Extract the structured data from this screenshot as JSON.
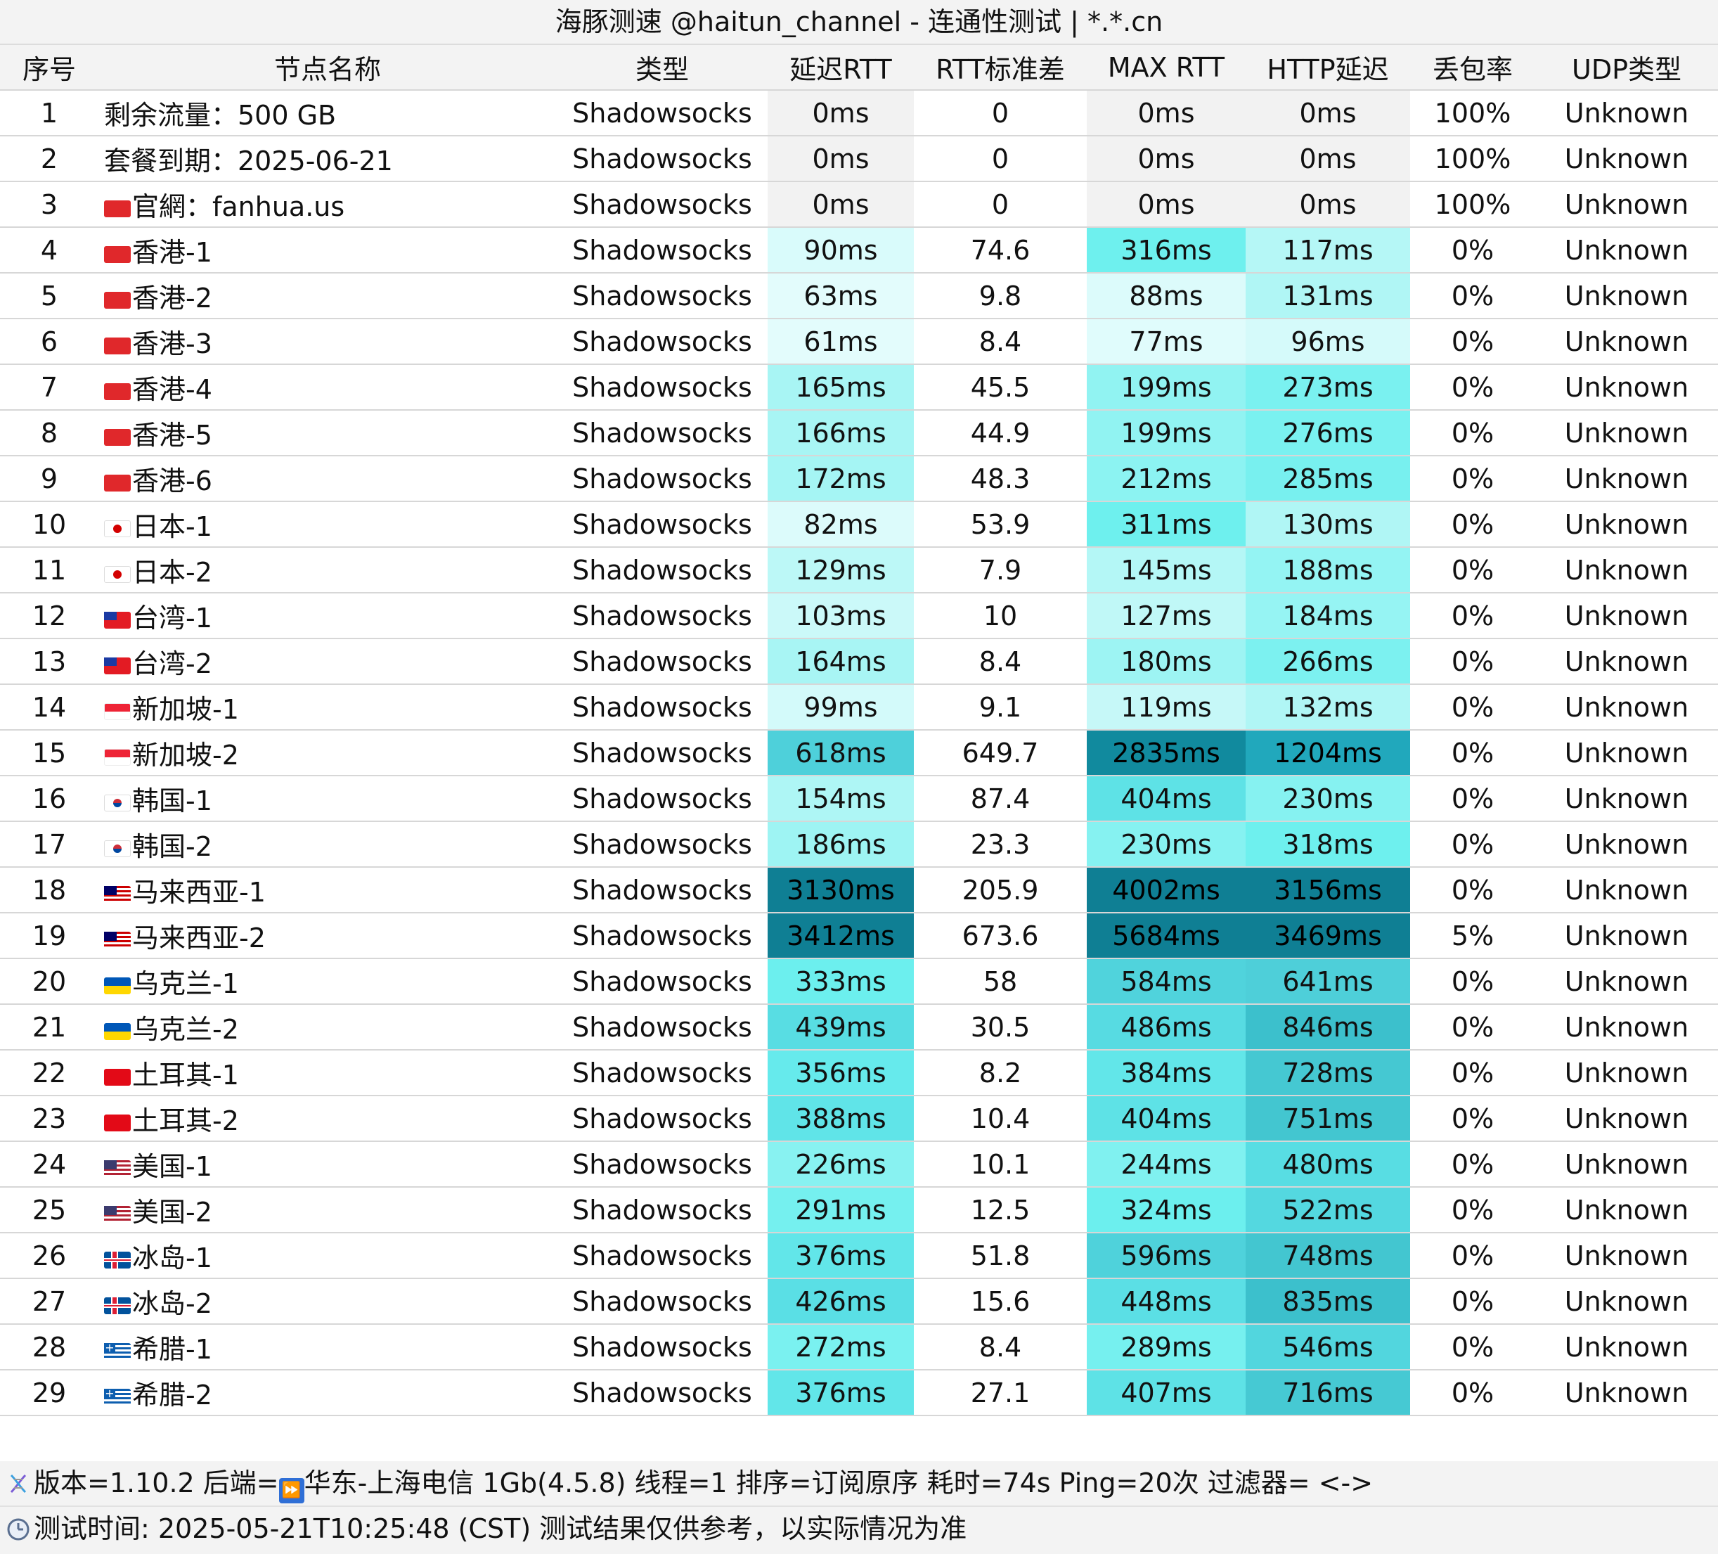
{
  "title": "海豚测速 @haitun_channel - 连通性测试 | *.*.cn",
  "columns": [
    "序号",
    "节点名称",
    "类型",
    "延迟RTT",
    "RTT标准差",
    "MAX RTT",
    "HTTP延迟",
    "丢包率",
    "UDP类型"
  ],
  "rows": [
    {
      "idx": "1",
      "flag": "",
      "name": "剩余流量：500 GB",
      "type": "Shadowsocks",
      "rtt": "0ms",
      "std": "0",
      "max": "0ms",
      "http": "0ms",
      "loss": "100%",
      "udp": "Unknown",
      "rtt_color": "#f2f2f2",
      "max_color": "#f2f2f2",
      "http_color": "#f2f2f2"
    },
    {
      "idx": "2",
      "flag": "",
      "name": "套餐到期：2025-06-21",
      "type": "Shadowsocks",
      "rtt": "0ms",
      "std": "0",
      "max": "0ms",
      "http": "0ms",
      "loss": "100%",
      "udp": "Unknown",
      "rtt_color": "#f2f2f2",
      "max_color": "#f2f2f2",
      "http_color": "#f2f2f2"
    },
    {
      "idx": "3",
      "flag": "hk",
      "name": "官網：fanhua.us",
      "type": "Shadowsocks",
      "rtt": "0ms",
      "std": "0",
      "max": "0ms",
      "http": "0ms",
      "loss": "100%",
      "udp": "Unknown",
      "rtt_color": "#f2f2f2",
      "max_color": "#f2f2f2",
      "http_color": "#f2f2f2"
    },
    {
      "idx": "4",
      "flag": "hk",
      "name": "香港-1",
      "type": "Shadowsocks",
      "rtt": "90ms",
      "std": "74.6",
      "max": "316ms",
      "http": "117ms",
      "loss": "0%",
      "udp": "Unknown",
      "rtt_color": "#d9fbfb",
      "max_color": "#6ef0ee",
      "http_color": "#b5f7f6"
    },
    {
      "idx": "5",
      "flag": "hk",
      "name": "香港-2",
      "type": "Shadowsocks",
      "rtt": "63ms",
      "std": "9.8",
      "max": "88ms",
      "http": "131ms",
      "loss": "0%",
      "udp": "Unknown",
      "rtt_color": "#e3fcfc",
      "max_color": "#dcfbfb",
      "http_color": "#b0f6f5"
    },
    {
      "idx": "6",
      "flag": "hk",
      "name": "香港-3",
      "type": "Shadowsocks",
      "rtt": "61ms",
      "std": "8.4",
      "max": "77ms",
      "http": "96ms",
      "loss": "0%",
      "udp": "Unknown",
      "rtt_color": "#e3fcfc",
      "max_color": "#e0fcfc",
      "http_color": "#d5fafa"
    },
    {
      "idx": "7",
      "flag": "hk",
      "name": "香港-4",
      "type": "Shadowsocks",
      "rtt": "165ms",
      "std": "45.5",
      "max": "199ms",
      "http": "273ms",
      "loss": "0%",
      "udp": "Unknown",
      "rtt_color": "#a8f5f4",
      "max_color": "#91f3f2",
      "http_color": "#7af1f0"
    },
    {
      "idx": "8",
      "flag": "hk",
      "name": "香港-5",
      "type": "Shadowsocks",
      "rtt": "166ms",
      "std": "44.9",
      "max": "199ms",
      "http": "276ms",
      "loss": "0%",
      "udp": "Unknown",
      "rtt_color": "#a8f5f4",
      "max_color": "#91f3f2",
      "http_color": "#7af1f0"
    },
    {
      "idx": "9",
      "flag": "hk",
      "name": "香港-6",
      "type": "Shadowsocks",
      "rtt": "172ms",
      "std": "48.3",
      "max": "212ms",
      "http": "285ms",
      "loss": "0%",
      "udp": "Unknown",
      "rtt_color": "#a5f5f4",
      "max_color": "#8cf3f2",
      "http_color": "#78f0ef"
    },
    {
      "idx": "10",
      "flag": "jp",
      "name": "日本-1",
      "type": "Shadowsocks",
      "rtt": "82ms",
      "std": "53.9",
      "max": "311ms",
      "http": "130ms",
      "loss": "0%",
      "udp": "Unknown",
      "rtt_color": "#dcfbfb",
      "max_color": "#6ef0ee",
      "http_color": "#b0f6f5"
    },
    {
      "idx": "11",
      "flag": "jp",
      "name": "日本-2",
      "type": "Shadowsocks",
      "rtt": "129ms",
      "std": "7.9",
      "max": "145ms",
      "http": "188ms",
      "loss": "0%",
      "udp": "Unknown",
      "rtt_color": "#bcf8f7",
      "max_color": "#b4f7f6",
      "http_color": "#94f4f3"
    },
    {
      "idx": "12",
      "flag": "tw",
      "name": "台湾-1",
      "type": "Shadowsocks",
      "rtt": "103ms",
      "std": "10",
      "max": "127ms",
      "http": "184ms",
      "loss": "0%",
      "udp": "Unknown",
      "rtt_color": "#cbf9f9",
      "max_color": "#c0f8f7",
      "http_color": "#96f4f3"
    },
    {
      "idx": "13",
      "flag": "tw",
      "name": "台湾-2",
      "type": "Shadowsocks",
      "rtt": "164ms",
      "std": "8.4",
      "max": "180ms",
      "http": "266ms",
      "loss": "0%",
      "udp": "Unknown",
      "rtt_color": "#a8f5f4",
      "max_color": "#9df4f3",
      "http_color": "#7cf1f0"
    },
    {
      "idx": "14",
      "flag": "sg",
      "name": "新加坡-1",
      "type": "Shadowsocks",
      "rtt": "99ms",
      "std": "9.1",
      "max": "119ms",
      "http": "132ms",
      "loss": "0%",
      "udp": "Unknown",
      "rtt_color": "#d3fafa",
      "max_color": "#c6f8f8",
      "http_color": "#b0f6f5"
    },
    {
      "idx": "15",
      "flag": "sg",
      "name": "新加坡-2",
      "type": "Shadowsocks",
      "rtt": "618ms",
      "std": "649.7",
      "max": "2835ms",
      "http": "1204ms",
      "loss": "0%",
      "udp": "Unknown",
      "rtt_color": "#4ed0da",
      "max_color": "#118a9e",
      "http_color": "#21a8bc"
    },
    {
      "idx": "16",
      "flag": "kr",
      "name": "韩国-1",
      "type": "Shadowsocks",
      "rtt": "154ms",
      "std": "87.4",
      "max": "404ms",
      "http": "230ms",
      "loss": "0%",
      "udp": "Unknown",
      "rtt_color": "#aef6f5",
      "max_color": "#5ee2e6",
      "http_color": "#86f2f1"
    },
    {
      "idx": "17",
      "flag": "kr",
      "name": "韩国-2",
      "type": "Shadowsocks",
      "rtt": "186ms",
      "std": "23.3",
      "max": "230ms",
      "http": "318ms",
      "loss": "0%",
      "udp": "Unknown",
      "rtt_color": "#9ef4f3",
      "max_color": "#86f2f1",
      "http_color": "#6ef0ee"
    },
    {
      "idx": "18",
      "flag": "my",
      "name": "马来西亚-1",
      "type": "Shadowsocks",
      "rtt": "3130ms",
      "std": "205.9",
      "max": "4002ms",
      "http": "3156ms",
      "loss": "0%",
      "udp": "Unknown",
      "rtt_color": "#0f7f94",
      "max_color": "#0f7f94",
      "http_color": "#0f7f94"
    },
    {
      "idx": "19",
      "flag": "my",
      "name": "马来西亚-2",
      "type": "Shadowsocks",
      "rtt": "3412ms",
      "std": "673.6",
      "max": "5684ms",
      "http": "3469ms",
      "loss": "5%",
      "udp": "Unknown",
      "rtt_color": "#0f7f94",
      "max_color": "#0f7f94",
      "http_color": "#0f7f94"
    },
    {
      "idx": "20",
      "flag": "ua",
      "name": "乌克兰-1",
      "type": "Shadowsocks",
      "rtt": "333ms",
      "std": "58",
      "max": "584ms",
      "http": "641ms",
      "loss": "0%",
      "udp": "Unknown",
      "rtt_color": "#6cefee",
      "max_color": "#50d3dc",
      "http_color": "#4ecfd9"
    },
    {
      "idx": "21",
      "flag": "ua",
      "name": "乌克兰-2",
      "type": "Shadowsocks",
      "rtt": "439ms",
      "std": "30.5",
      "max": "486ms",
      "http": "846ms",
      "loss": "0%",
      "udp": "Unknown",
      "rtt_color": "#58dde3",
      "max_color": "#57dbe2",
      "http_color": "#3cc0cc"
    },
    {
      "idx": "22",
      "flag": "tr",
      "name": "土耳其-1",
      "type": "Shadowsocks",
      "rtt": "356ms",
      "std": "8.2",
      "max": "384ms",
      "http": "728ms",
      "loss": "0%",
      "udp": "Unknown",
      "rtt_color": "#66eaec",
      "max_color": "#62e6e9",
      "http_color": "#45c8d2"
    },
    {
      "idx": "23",
      "flag": "tr",
      "name": "土耳其-2",
      "type": "Shadowsocks",
      "rtt": "388ms",
      "std": "10.4",
      "max": "404ms",
      "http": "751ms",
      "loss": "0%",
      "udp": "Unknown",
      "rtt_color": "#60e4e8",
      "max_color": "#5ee2e6",
      "http_color": "#43c6d0"
    },
    {
      "idx": "24",
      "flag": "us",
      "name": "美国-1",
      "type": "Shadowsocks",
      "rtt": "226ms",
      "std": "10.1",
      "max": "244ms",
      "http": "480ms",
      "loss": "0%",
      "udp": "Unknown",
      "rtt_color": "#88f2f1",
      "max_color": "#80f1f0",
      "http_color": "#58dde3"
    },
    {
      "idx": "25",
      "flag": "us",
      "name": "美国-2",
      "type": "Shadowsocks",
      "rtt": "291ms",
      "std": "12.5",
      "max": "324ms",
      "http": "522ms",
      "loss": "0%",
      "udp": "Unknown",
      "rtt_color": "#75f0ef",
      "max_color": "#6cefee",
      "http_color": "#54d8e0"
    },
    {
      "idx": "26",
      "flag": "is",
      "name": "冰岛-1",
      "type": "Shadowsocks",
      "rtt": "376ms",
      "std": "51.8",
      "max": "596ms",
      "http": "748ms",
      "loss": "0%",
      "udp": "Unknown",
      "rtt_color": "#62e6e9",
      "max_color": "#4fd2db",
      "http_color": "#43c6d0"
    },
    {
      "idx": "27",
      "flag": "is",
      "name": "冰岛-2",
      "type": "Shadowsocks",
      "rtt": "426ms",
      "std": "15.6",
      "max": "448ms",
      "http": "835ms",
      "loss": "0%",
      "udp": "Unknown",
      "rtt_color": "#5adfe5",
      "max_color": "#5bdfe5",
      "http_color": "#3cc0cc"
    },
    {
      "idx": "28",
      "flag": "gr",
      "name": "希腊-1",
      "type": "Shadowsocks",
      "rtt": "272ms",
      "std": "8.4",
      "max": "289ms",
      "http": "546ms",
      "loss": "0%",
      "udp": "Unknown",
      "rtt_color": "#7af1f0",
      "max_color": "#76f0ef",
      "http_color": "#52d6de"
    },
    {
      "idx": "29",
      "flag": "gr",
      "name": "希腊-2",
      "type": "Shadowsocks",
      "rtt": "376ms",
      "std": "27.1",
      "max": "407ms",
      "http": "716ms",
      "loss": "0%",
      "udp": "Unknown",
      "rtt_color": "#62e6e9",
      "max_color": "#5ee2e6",
      "http_color": "#46c9d3"
    }
  ],
  "footer": {
    "line1": "版本=1.10.2  后端=",
    "line1_backend": "华东-上海电信 1Gb(4.5.8)   线程=1  排序=订阅原序  耗时=74s  Ping=20次  过滤器= <->",
    "line1_icon": "dna-icon",
    "backend_icon": "fast-forward-icon",
    "line2": "测试时间: 2025-05-21T10:25:48 (CST)  测试结果仅供参考，以实际情况为准",
    "line2_icon": "clock-icon"
  }
}
